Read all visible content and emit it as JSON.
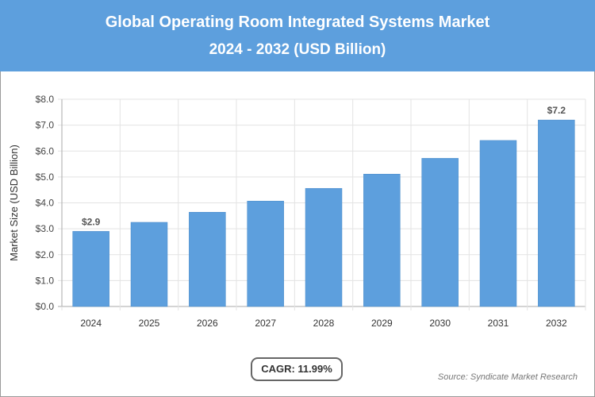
{
  "header": {
    "title": "Global Operating Room Integrated Systems Market",
    "subtitle": "2024 - 2032 (USD Billion)"
  },
  "chart_data": {
    "type": "bar",
    "title": "Global Operating Room Integrated Systems Market",
    "subtitle": "2024 - 2032 (USD Billion)",
    "categories": [
      "2024",
      "2025",
      "2026",
      "2027",
      "2028",
      "2029",
      "2030",
      "2031",
      "2032"
    ],
    "values": [
      2.9,
      3.25,
      3.64,
      4.07,
      4.56,
      5.11,
      5.72,
      6.41,
      7.2
    ],
    "data_labels": {
      "0": "$2.9",
      "8": "$7.2"
    },
    "ylabel": "Market Size (USD Billion)",
    "xlabel": "",
    "ylim": [
      0,
      8
    ],
    "yticks": [
      "$0.0",
      "$1.0",
      "$2.0",
      "$3.0",
      "$4.0",
      "$5.0",
      "$6.0",
      "$7.0",
      "$8.0"
    ],
    "grid": true,
    "bar_color": "#5d9fdd"
  },
  "footer": {
    "cagr": "CAGR: 11.99%",
    "source": "Source: Syndicate Market Research"
  }
}
